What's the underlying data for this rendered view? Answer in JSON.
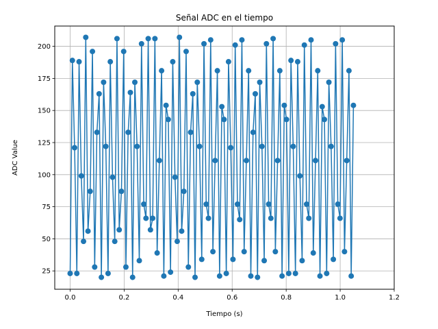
{
  "chart_data": {
    "type": "line",
    "title": "Señal ADC en el tiempo",
    "xlabel": "Tiempo (s)",
    "ylabel": "ADC Value",
    "xlim": [
      -0.057,
      1.2
    ],
    "ylim": [
      10.7,
      215.8
    ],
    "xticks": [
      0.0,
      0.2,
      0.4,
      0.6,
      0.8,
      1.0,
      1.2
    ],
    "xtick_labels": [
      "0.0",
      "0.2",
      "0.4",
      "0.6",
      "0.8",
      "1.0",
      "1.2"
    ],
    "yticks": [
      25,
      50,
      75,
      100,
      125,
      150,
      175,
      200
    ],
    "ytick_labels": [
      "25",
      "50",
      "75",
      "100",
      "125",
      "150",
      "175",
      "200"
    ],
    "grid": true,
    "color": "#1f77b4",
    "marker": "circle",
    "dt": 0.00826,
    "series": [
      {
        "values": [
          23,
          189,
          121,
          23,
          188,
          99,
          48,
          207,
          56,
          87,
          196,
          28,
          133,
          163,
          20,
          172,
          122,
          23,
          188,
          98,
          48,
          206,
          57,
          87,
          196,
          28,
          133,
          164,
          20,
          172,
          122,
          33,
          202,
          77,
          66,
          206,
          57,
          66,
          206,
          39,
          111,
          181,
          21,
          154,
          143,
          24,
          188,
          98,
          48,
          207,
          56,
          87,
          196,
          28,
          133,
          163,
          20,
          172,
          122,
          34,
          202,
          77,
          66,
          205,
          40,
          111,
          181,
          21,
          153,
          143,
          23,
          188,
          121,
          34,
          201,
          77,
          65,
          205,
          40,
          111,
          181,
          21,
          133,
          163,
          20,
          172,
          122,
          33,
          202,
          77,
          66,
          206,
          40,
          111,
          181,
          21,
          154,
          143,
          23,
          189,
          122,
          23,
          188,
          99,
          33,
          201,
          77,
          66,
          205,
          39,
          111,
          181,
          21,
          153,
          143,
          23,
          172,
          122,
          34,
          202,
          77,
          66,
          205,
          40,
          111,
          181,
          21,
          154
        ]
      }
    ]
  }
}
